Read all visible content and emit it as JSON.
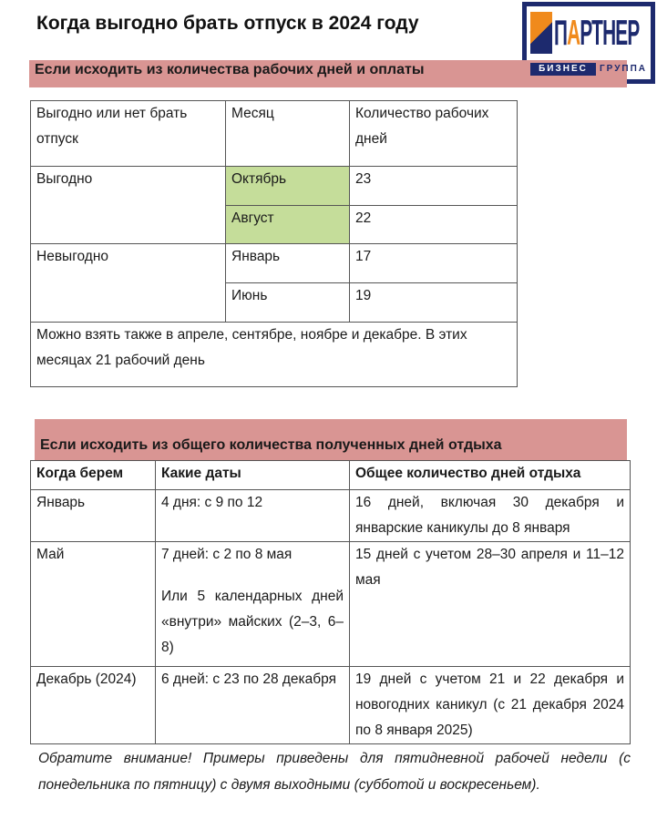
{
  "title": "Когда выгодно брать отпуск в 2024 году",
  "logo": {
    "main": "ПАРТНЕР",
    "sub1": "БИЗНЕС",
    "sub2": "ГРУППА"
  },
  "section1": {
    "heading": "Если исходить из количества рабочих дней и оплаты",
    "headers": [
      "Выгодно или нет брать отпуск",
      "Месяц",
      "Количество рабочих дней"
    ],
    "groups": [
      {
        "label": "Выгодно",
        "rows": [
          {
            "month": "Октябрь",
            "days": "23"
          },
          {
            "month": "Август",
            "days": "22"
          }
        ]
      },
      {
        "label": "Невыгодно",
        "rows": [
          {
            "month": "Январь",
            "days": "17"
          },
          {
            "month": "Июнь",
            "days": "19"
          }
        ]
      }
    ],
    "note": "Можно взять также в апреле, сентябре, ноябре и декабре. В этих месяцах 21 рабочий день",
    "highlight_color": "#c5dd9a"
  },
  "section2": {
    "heading": "Если исходить из общего количества полученных дней отдыха",
    "headers": [
      "Когда берем",
      "Какие даты",
      "Общее количество дней отдыха"
    ],
    "rows": [
      {
        "when": "Январь",
        "dates": "4 дня: с 9 по 12",
        "dates2": "",
        "total": "16 дней, включая 30 декабря и январские каникулы до 8 января"
      },
      {
        "when": "Май",
        "dates": "7 дней: с 2 по 8 мая",
        "dates2": "Или 5 календарных дней «внутри» майских (2–3, 6–8)",
        "total": "15 дней с учетом 28–30 апреля и 11–12 мая"
      },
      {
        "when": "Декабрь (2024)",
        "dates": "6 дней: с 23 по 28 декабря",
        "dates2": "",
        "total": "19 дней с учетом 21 и 22 декабря и новогодних каникул (с 21 декабря 2024 по 8 января 2025)"
      }
    ]
  },
  "footnote": "Обратите внимание! Примеры приведены для пятидневной рабочей недели (с понедельника по пятницу) с двумя выходными (субботой и воскресеньем).",
  "colors": {
    "heading_bar": "#d99593",
    "logo_navy": "#1d2a6e",
    "logo_orange": "#f08a1c"
  }
}
